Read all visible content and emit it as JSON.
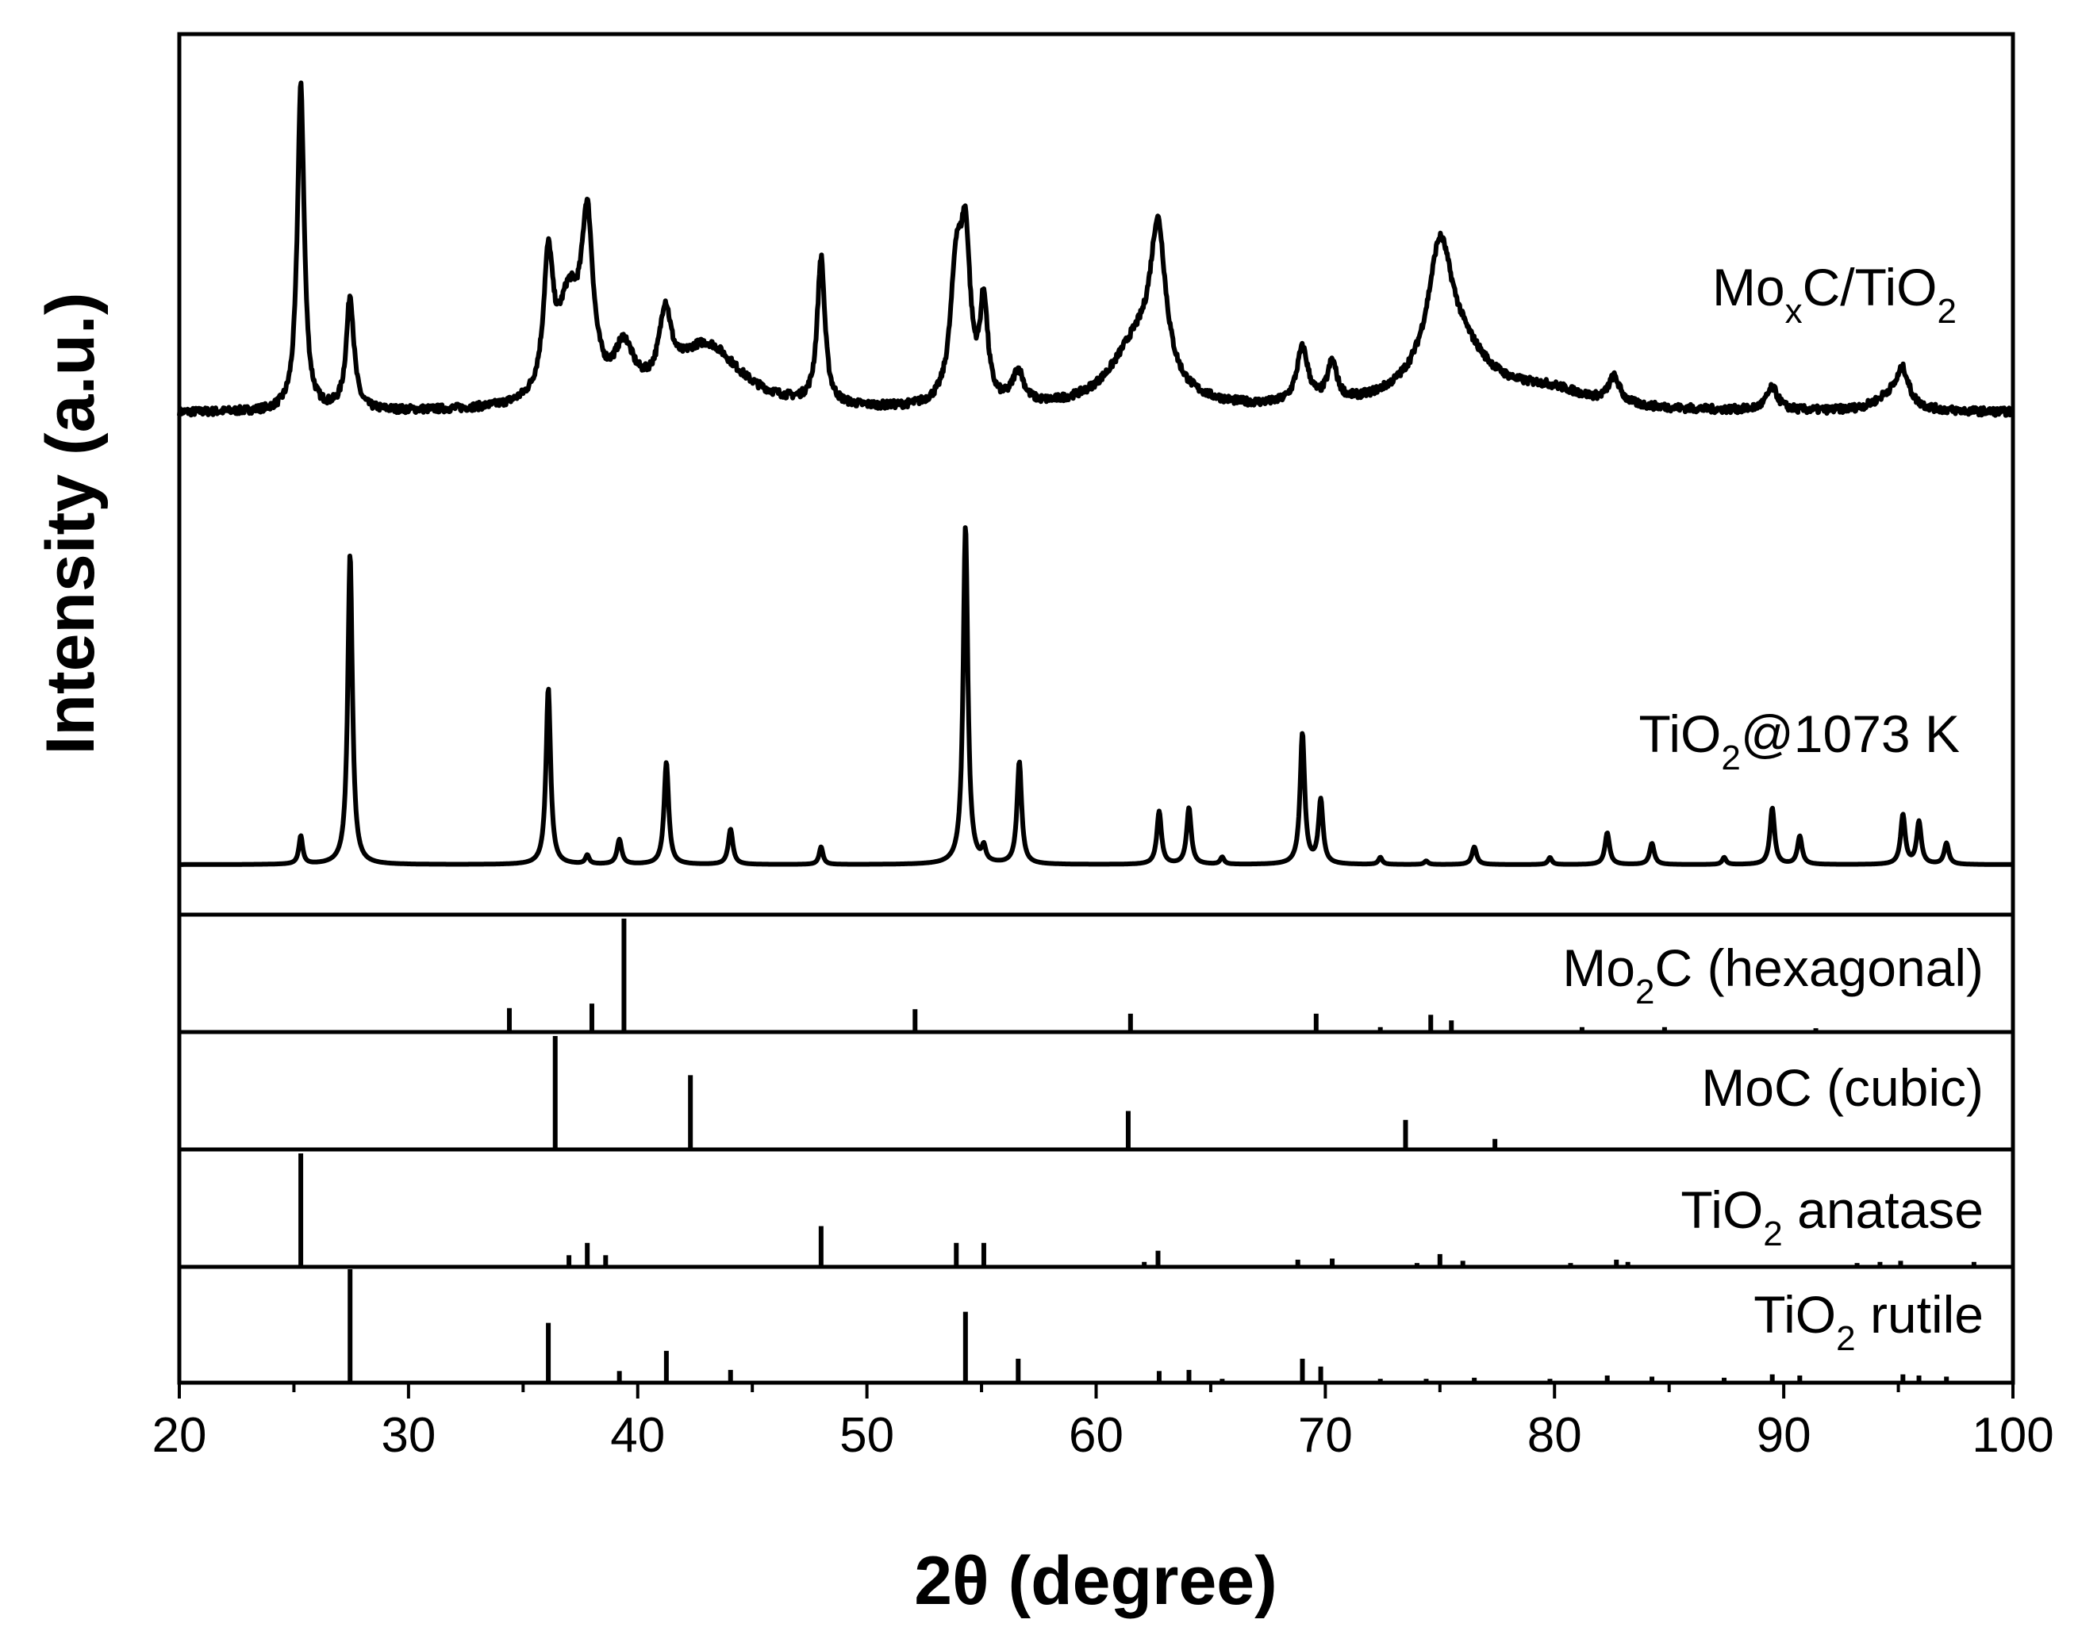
{
  "chart_data": {
    "type": "line",
    "x_axis": {
      "label": "2θ (degree)",
      "range": [
        20,
        100
      ],
      "ticks": [
        20,
        30,
        40,
        50,
        60,
        70,
        80,
        90,
        100
      ]
    },
    "y_axis": {
      "label": "Intensity (a.u.)"
    },
    "series": [
      {
        "name": "MoxC/TiO2",
        "label_main": "Mo",
        "label_sub1": "x",
        "label_mid": "C/TiO",
        "label_sub2": "2",
        "baseline": 0.03,
        "noise": 0.012,
        "peaks": [
          {
            "x": 25.3,
            "h": 1.0,
            "w": 0.18
          },
          {
            "x": 27.45,
            "h": 0.35,
            "w": 0.2
          },
          {
            "x": 36.1,
            "h": 0.4,
            "w": 0.25
          },
          {
            "x": 37.0,
            "h": 0.3,
            "w": 0.6
          },
          {
            "x": 37.8,
            "h": 0.5,
            "w": 0.3
          },
          {
            "x": 39.4,
            "h": 0.15,
            "w": 0.5
          },
          {
            "x": 41.2,
            "h": 0.22,
            "w": 0.3
          },
          {
            "x": 43.0,
            "h": 0.2,
            "w": 1.8
          },
          {
            "x": 48.0,
            "h": 0.45,
            "w": 0.2
          },
          {
            "x": 53.9,
            "h": 0.4,
            "w": 0.3
          },
          {
            "x": 54.3,
            "h": 0.45,
            "w": 0.25
          },
          {
            "x": 55.1,
            "h": 0.3,
            "w": 0.2
          },
          {
            "x": 56.6,
            "h": 0.1,
            "w": 0.3
          },
          {
            "x": 61.8,
            "h": 0.2,
            "w": 1.4
          },
          {
            "x": 62.7,
            "h": 0.45,
            "w": 0.4
          },
          {
            "x": 69.0,
            "h": 0.17,
            "w": 0.3
          },
          {
            "x": 70.3,
            "h": 0.12,
            "w": 0.25
          },
          {
            "x": 75.0,
            "h": 0.35,
            "w": 0.6
          },
          {
            "x": 75.6,
            "h": 0.2,
            "w": 1.8
          },
          {
            "x": 79.8,
            "h": 0.05,
            "w": 2.0
          },
          {
            "x": 82.6,
            "h": 0.08,
            "w": 0.3
          },
          {
            "x": 89.5,
            "h": 0.07,
            "w": 0.3
          },
          {
            "x": 94.7,
            "h": 0.05,
            "w": 0.8
          },
          {
            "x": 95.2,
            "h": 0.1,
            "w": 0.3
          }
        ]
      },
      {
        "name": "TiO2@1073 K",
        "label_main": "TiO",
        "label_sub1": "2",
        "label_mid": "@1073 K",
        "baseline": 0.0,
        "noise": 0.0,
        "peaks": [
          {
            "x": 25.3,
            "h": 0.08,
            "w": 0.1
          },
          {
            "x": 27.45,
            "h": 0.88,
            "w": 0.12
          },
          {
            "x": 36.1,
            "h": 0.5,
            "w": 0.12
          },
          {
            "x": 37.8,
            "h": 0.025,
            "w": 0.1
          },
          {
            "x": 39.2,
            "h": 0.07,
            "w": 0.12
          },
          {
            "x": 41.25,
            "h": 0.29,
            "w": 0.12
          },
          {
            "x": 44.05,
            "h": 0.1,
            "w": 0.12
          },
          {
            "x": 48.0,
            "h": 0.05,
            "w": 0.1
          },
          {
            "x": 54.3,
            "h": 0.96,
            "w": 0.12
          },
          {
            "x": 55.1,
            "h": 0.04,
            "w": 0.1
          },
          {
            "x": 56.65,
            "h": 0.29,
            "w": 0.12
          },
          {
            "x": 62.75,
            "h": 0.15,
            "w": 0.12
          },
          {
            "x": 64.05,
            "h": 0.16,
            "w": 0.12
          },
          {
            "x": 65.5,
            "h": 0.02,
            "w": 0.1
          },
          {
            "x": 69.0,
            "h": 0.37,
            "w": 0.12
          },
          {
            "x": 69.8,
            "h": 0.18,
            "w": 0.12
          },
          {
            "x": 72.4,
            "h": 0.02,
            "w": 0.1
          },
          {
            "x": 74.4,
            "h": 0.01,
            "w": 0.1
          },
          {
            "x": 76.5,
            "h": 0.05,
            "w": 0.12
          },
          {
            "x": 79.8,
            "h": 0.02,
            "w": 0.1
          },
          {
            "x": 82.3,
            "h": 0.09,
            "w": 0.12
          },
          {
            "x": 84.25,
            "h": 0.06,
            "w": 0.12
          },
          {
            "x": 87.4,
            "h": 0.02,
            "w": 0.1
          },
          {
            "x": 89.5,
            "h": 0.16,
            "w": 0.12
          },
          {
            "x": 90.7,
            "h": 0.08,
            "w": 0.12
          },
          {
            "x": 95.2,
            "h": 0.14,
            "w": 0.12
          },
          {
            "x": 95.9,
            "h": 0.12,
            "w": 0.12
          },
          {
            "x": 97.1,
            "h": 0.06,
            "w": 0.12
          }
        ]
      }
    ],
    "reference_patterns": [
      {
        "name": "Mo2C (hexagonal)",
        "label_main": "Mo",
        "label_sub1": "2",
        "label_mid": "C (hexagonal)",
        "lines": [
          {
            "x": 34.4,
            "i": 0.2
          },
          {
            "x": 38.0,
            "i": 0.24
          },
          {
            "x": 39.4,
            "i": 1.0
          },
          {
            "x": 52.1,
            "i": 0.19
          },
          {
            "x": 61.5,
            "i": 0.15
          },
          {
            "x": 69.6,
            "i": 0.15
          },
          {
            "x": 72.4,
            "i": 0.03
          },
          {
            "x": 74.6,
            "i": 0.14
          },
          {
            "x": 75.5,
            "i": 0.09
          },
          {
            "x": 81.2,
            "i": 0.03
          },
          {
            "x": 84.8,
            "i": 0.03
          },
          {
            "x": 91.4,
            "i": 0.02
          }
        ]
      },
      {
        "name": "MoC (cubic)",
        "label_main": "MoC (cubic)",
        "lines": [
          {
            "x": 36.4,
            "i": 1.0
          },
          {
            "x": 42.3,
            "i": 0.65
          },
          {
            "x": 61.4,
            "i": 0.33
          },
          {
            "x": 73.5,
            "i": 0.25
          },
          {
            "x": 77.4,
            "i": 0.08
          }
        ]
      },
      {
        "name": "TiO2 anatase",
        "label_main": "TiO",
        "label_sub1": "2",
        "label_mid": " anatase",
        "lines": [
          {
            "x": 25.3,
            "i": 1.0
          },
          {
            "x": 37.0,
            "i": 0.09
          },
          {
            "x": 37.8,
            "i": 0.2
          },
          {
            "x": 38.6,
            "i": 0.09
          },
          {
            "x": 48.0,
            "i": 0.35
          },
          {
            "x": 53.9,
            "i": 0.2
          },
          {
            "x": 55.1,
            "i": 0.2
          },
          {
            "x": 62.1,
            "i": 0.03
          },
          {
            "x": 62.7,
            "i": 0.13
          },
          {
            "x": 68.8,
            "i": 0.05
          },
          {
            "x": 70.3,
            "i": 0.06
          },
          {
            "x": 74.0,
            "i": 0.02
          },
          {
            "x": 75.0,
            "i": 0.1
          },
          {
            "x": 76.0,
            "i": 0.04
          },
          {
            "x": 80.7,
            "i": 0.02
          },
          {
            "x": 82.7,
            "i": 0.05
          },
          {
            "x": 83.2,
            "i": 0.03
          },
          {
            "x": 93.2,
            "i": 0.02
          },
          {
            "x": 94.2,
            "i": 0.03
          },
          {
            "x": 95.1,
            "i": 0.04
          },
          {
            "x": 98.3,
            "i": 0.03
          }
        ]
      },
      {
        "name": "TiO2 rutile",
        "label_main": "TiO",
        "label_sub1": "2",
        "label_mid": " rutile",
        "lines": [
          {
            "x": 27.45,
            "i": 1.0
          },
          {
            "x": 36.1,
            "i": 0.52
          },
          {
            "x": 39.2,
            "i": 0.09
          },
          {
            "x": 41.25,
            "i": 0.27
          },
          {
            "x": 44.05,
            "i": 0.1
          },
          {
            "x": 54.3,
            "i": 0.62
          },
          {
            "x": 56.6,
            "i": 0.2
          },
          {
            "x": 62.75,
            "i": 0.09
          },
          {
            "x": 64.05,
            "i": 0.1
          },
          {
            "x": 65.5,
            "i": 0.02
          },
          {
            "x": 69.0,
            "i": 0.2
          },
          {
            "x": 69.8,
            "i": 0.13
          },
          {
            "x": 72.4,
            "i": 0.02
          },
          {
            "x": 74.4,
            "i": 0.02
          },
          {
            "x": 76.5,
            "i": 0.03
          },
          {
            "x": 79.8,
            "i": 0.02
          },
          {
            "x": 82.3,
            "i": 0.05
          },
          {
            "x": 84.25,
            "i": 0.04
          },
          {
            "x": 87.4,
            "i": 0.03
          },
          {
            "x": 89.5,
            "i": 0.06
          },
          {
            "x": 90.7,
            "i": 0.05
          },
          {
            "x": 95.2,
            "i": 0.06
          },
          {
            "x": 95.9,
            "i": 0.05
          },
          {
            "x": 97.1,
            "i": 0.04
          }
        ]
      }
    ]
  }
}
